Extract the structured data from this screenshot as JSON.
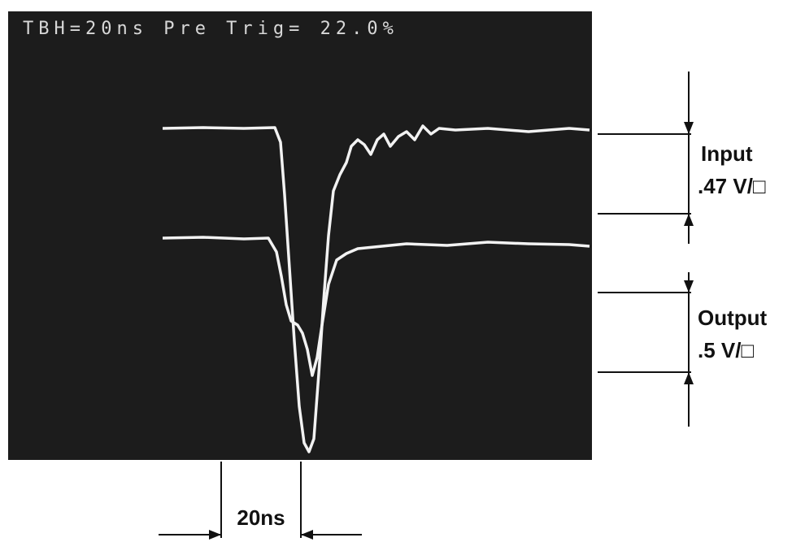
{
  "screen": {
    "header": "TBH=20ns Pre Trig= 22.0%"
  },
  "annotations": {
    "input_label": "Input",
    "input_scale": ".47 V/□",
    "output_label": "Output",
    "output_scale": ".5 V/□",
    "time_span": "20ns"
  }
}
